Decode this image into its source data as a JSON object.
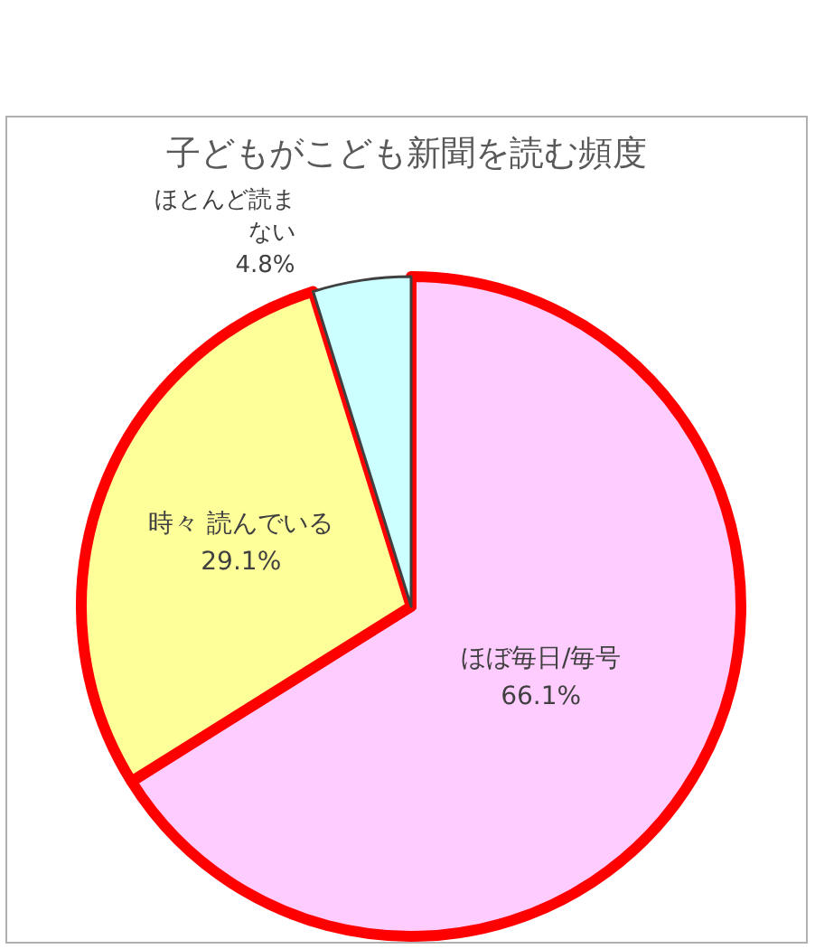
{
  "chart_data": {
    "type": "pie",
    "title": "子どもがこども新聞を読む頻度",
    "categories": [
      "ほぼ毎日/毎号",
      "時々 読んでいる",
      "ほとんど読まない"
    ],
    "values": [
      66.1,
      29.1,
      4.8
    ],
    "value_labels": [
      "66.1%",
      "29.1%",
      "4.8%"
    ],
    "colors": [
      "#ffccff",
      "#ffff99",
      "#ccffff"
    ],
    "legend": false
  }
}
